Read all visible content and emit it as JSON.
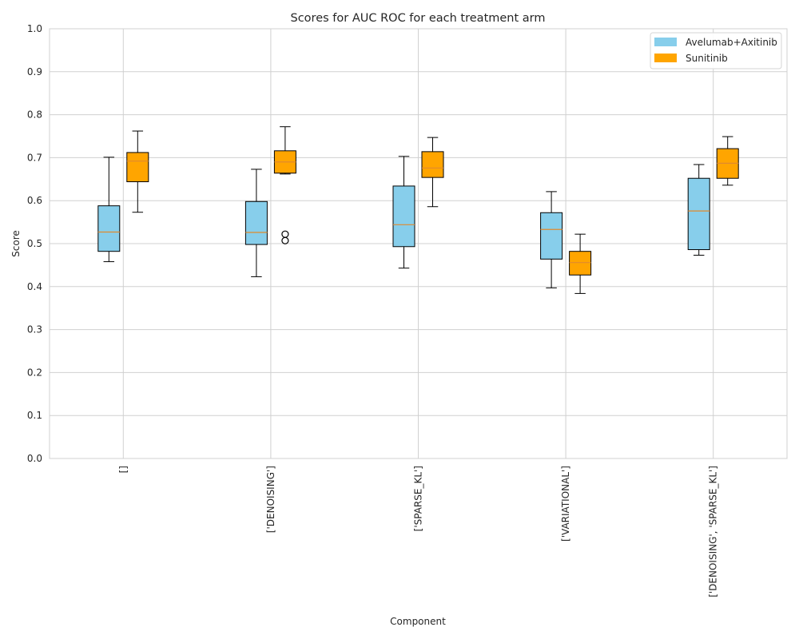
{
  "chart_data": {
    "type": "boxplot",
    "title": "Scores for AUC ROC for each treatment arm",
    "xlabel": "Component",
    "ylabel": "Score",
    "ylim": [
      0.0,
      1.0
    ],
    "yticks": [
      "0.0",
      "0.1",
      "0.2",
      "0.3",
      "0.4",
      "0.5",
      "0.6",
      "0.7",
      "0.8",
      "0.9",
      "1.0"
    ],
    "grid": true,
    "legend_position": "top-right",
    "categories": [
      "[]",
      "['DENOISING']",
      "['SPARSE_KL']",
      "['VARIATIONAL']",
      "['DENOISING', 'SPARSE_KL']"
    ],
    "series": [
      {
        "name": "Avelumab+Axitinib",
        "color": "#87CEEB",
        "boxes": [
          {
            "whisker_low": 0.458,
            "q1": 0.482,
            "median": 0.527,
            "q3": 0.588,
            "whisker_high": 0.701,
            "outliers": []
          },
          {
            "whisker_low": 0.423,
            "q1": 0.498,
            "median": 0.526,
            "q3": 0.598,
            "whisker_high": 0.673,
            "outliers": []
          },
          {
            "whisker_low": 0.443,
            "q1": 0.493,
            "median": 0.544,
            "q3": 0.634,
            "whisker_high": 0.703,
            "outliers": []
          },
          {
            "whisker_low": 0.397,
            "q1": 0.464,
            "median": 0.533,
            "q3": 0.572,
            "whisker_high": 0.621,
            "outliers": []
          },
          {
            "whisker_low": 0.473,
            "q1": 0.486,
            "median": 0.576,
            "q3": 0.652,
            "whisker_high": 0.684,
            "outliers": []
          }
        ]
      },
      {
        "name": "Sunitinib",
        "color": "#FFA500",
        "boxes": [
          {
            "whisker_low": 0.573,
            "q1": 0.644,
            "median": 0.692,
            "q3": 0.712,
            "whisker_high": 0.762,
            "outliers": []
          },
          {
            "whisker_low": 0.662,
            "q1": 0.664,
            "median": 0.69,
            "q3": 0.716,
            "whisker_high": 0.772,
            "outliers": [
              0.522,
              0.507
            ]
          },
          {
            "whisker_low": 0.586,
            "q1": 0.654,
            "median": 0.676,
            "q3": 0.714,
            "whisker_high": 0.747,
            "outliers": []
          },
          {
            "whisker_low": 0.384,
            "q1": 0.427,
            "median": 0.456,
            "q3": 0.482,
            "whisker_high": 0.522,
            "outliers": []
          },
          {
            "whisker_low": 0.636,
            "q1": 0.652,
            "median": 0.687,
            "q3": 0.721,
            "whisker_high": 0.749,
            "outliers": []
          }
        ]
      }
    ],
    "median_color": "#E08A2E"
  }
}
